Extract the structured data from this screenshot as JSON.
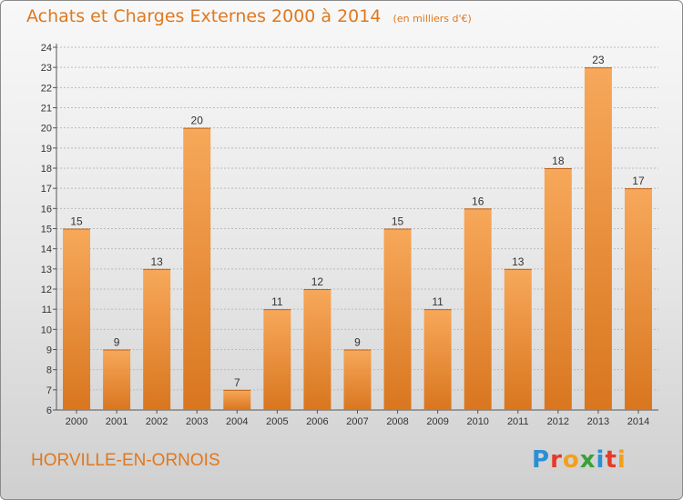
{
  "title": "Achats et Charges Externes 2000 à 2014",
  "title_unit": "(en milliers d'€)",
  "location": "HORVILLE-EN-ORNOIS",
  "logo": {
    "text": "Proxiti",
    "letter_colors": [
      "#2b8fd6",
      "#e53a2a",
      "#f0a01e",
      "#3aa03a",
      "#2b8fd6",
      "#e53a2a",
      "#f0a01e"
    ]
  },
  "colors": {
    "bar_top": "#f7a85a",
    "bar_bottom": "#d9761f",
    "title": "#e0781e",
    "grid": "#bbbbbb"
  },
  "chart_data": {
    "type": "bar",
    "categories": [
      "2000",
      "2001",
      "2002",
      "2003",
      "2004",
      "2005",
      "2006",
      "2007",
      "2008",
      "2009",
      "2010",
      "2011",
      "2012",
      "2013",
      "2014"
    ],
    "values": [
      15,
      9,
      13,
      20,
      7,
      11,
      12,
      9,
      15,
      11,
      16,
      13,
      18,
      23,
      17
    ],
    "ylim": [
      6,
      24
    ],
    "yticks": [
      6,
      7,
      8,
      9,
      10,
      11,
      12,
      13,
      14,
      15,
      16,
      17,
      18,
      19,
      20,
      21,
      22,
      23,
      24
    ],
    "grid": true
  }
}
